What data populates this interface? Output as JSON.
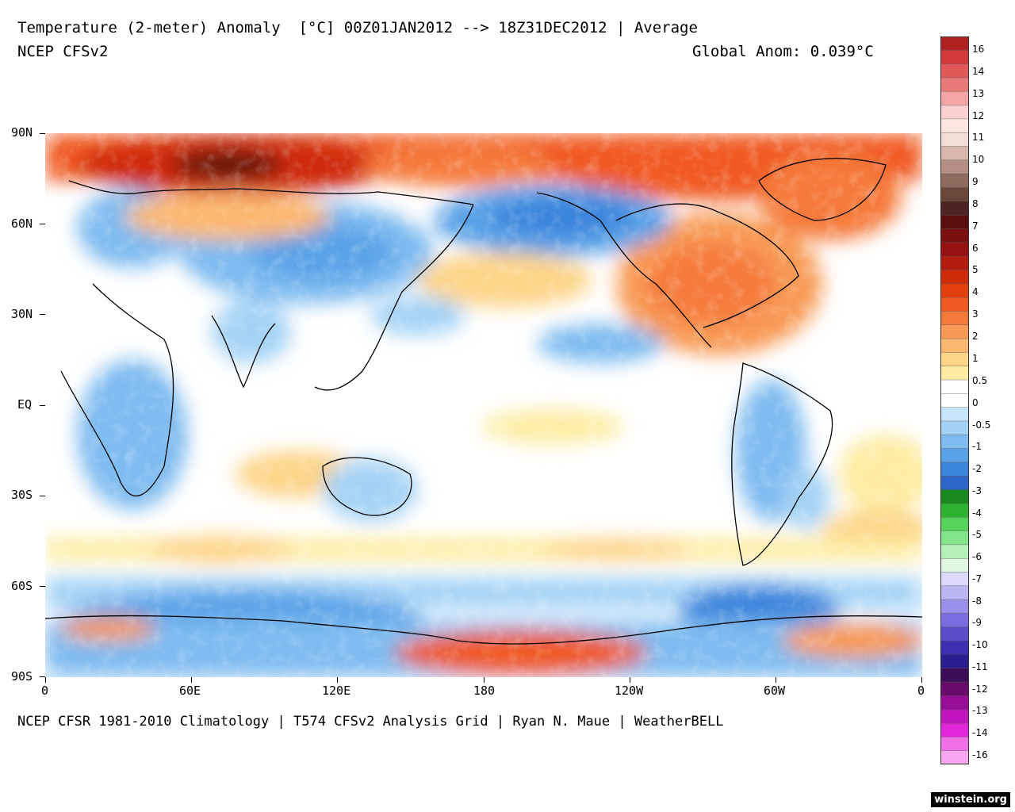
{
  "header": {
    "title": "Temperature (2-meter) Anomaly  [°C] 00Z01JAN2012 --> 18Z31DEC2012 | Average",
    "model": "NCEP CFSv2",
    "global_anom": "Global Anom: 0.039°C"
  },
  "footer": {
    "source": "NCEP CFSR 1981-2010 Climatology | T574 CFSv2 Analysis Grid | Ryan N. Maue | WeatherBELL",
    "credit": "winstein.org"
  },
  "axes": {
    "y_labels": [
      "90N",
      "60N",
      "30N",
      "EQ",
      "30S",
      "60S",
      "90S"
    ],
    "x_labels": [
      "0",
      "60E",
      "120E",
      "180",
      "120W",
      "60W",
      "0"
    ]
  },
  "colorbar": {
    "labels": [
      "16",
      "14",
      "13",
      "12",
      "11",
      "10",
      "9",
      "8",
      "7",
      "6",
      "5",
      "4",
      "3",
      "2",
      "1",
      "0.5",
      "0",
      "-0.5",
      "-1",
      "-2",
      "-3",
      "-4",
      "-5",
      "-6",
      "-7",
      "-8",
      "-9",
      "-10",
      "-11",
      "-12",
      "-13",
      "-14",
      "-16"
    ],
    "colors": [
      "#b22222",
      "#d43a3a",
      "#e05858",
      "#ea7a7a",
      "#f4a6a6",
      "#fbd0cf",
      "#fde6df",
      "#f3ded6",
      "#d9b7ad",
      "#b58f85",
      "#8e6a5f",
      "#6b463b",
      "#4d2520",
      "#5a0f0f",
      "#7a1010",
      "#961212",
      "#b51c10",
      "#cf2a0a",
      "#e4400d",
      "#f05a22",
      "#f57a3a",
      "#f89a55",
      "#fbb770",
      "#fdd488",
      "#fdeca2",
      "#ffffff",
      "#ffffff",
      "#c8e6fa",
      "#a4d2f5",
      "#7ebbef",
      "#5aa2e7",
      "#3b84dc",
      "#2f67c8",
      "#188a1e",
      "#2fb233",
      "#55d35a",
      "#84e488",
      "#b6f0b8",
      "#e0f7e0",
      "#dcd9fa",
      "#bcb5f4",
      "#9a90ec",
      "#7a6cde",
      "#5b4ccc",
      "#3e2fb2",
      "#2a1d8f",
      "#3d0e58",
      "#6a0b6b",
      "#960e96",
      "#c114bc",
      "#e226da",
      "#ee6fe6",
      "#f6a7ef"
    ]
  },
  "map": {
    "region": "Global 90N-90S, 0-360",
    "anomaly_note": "Warm Arctic, cool NE Pacific / Alaska, warm North America east, cool Antarctica interior"
  }
}
